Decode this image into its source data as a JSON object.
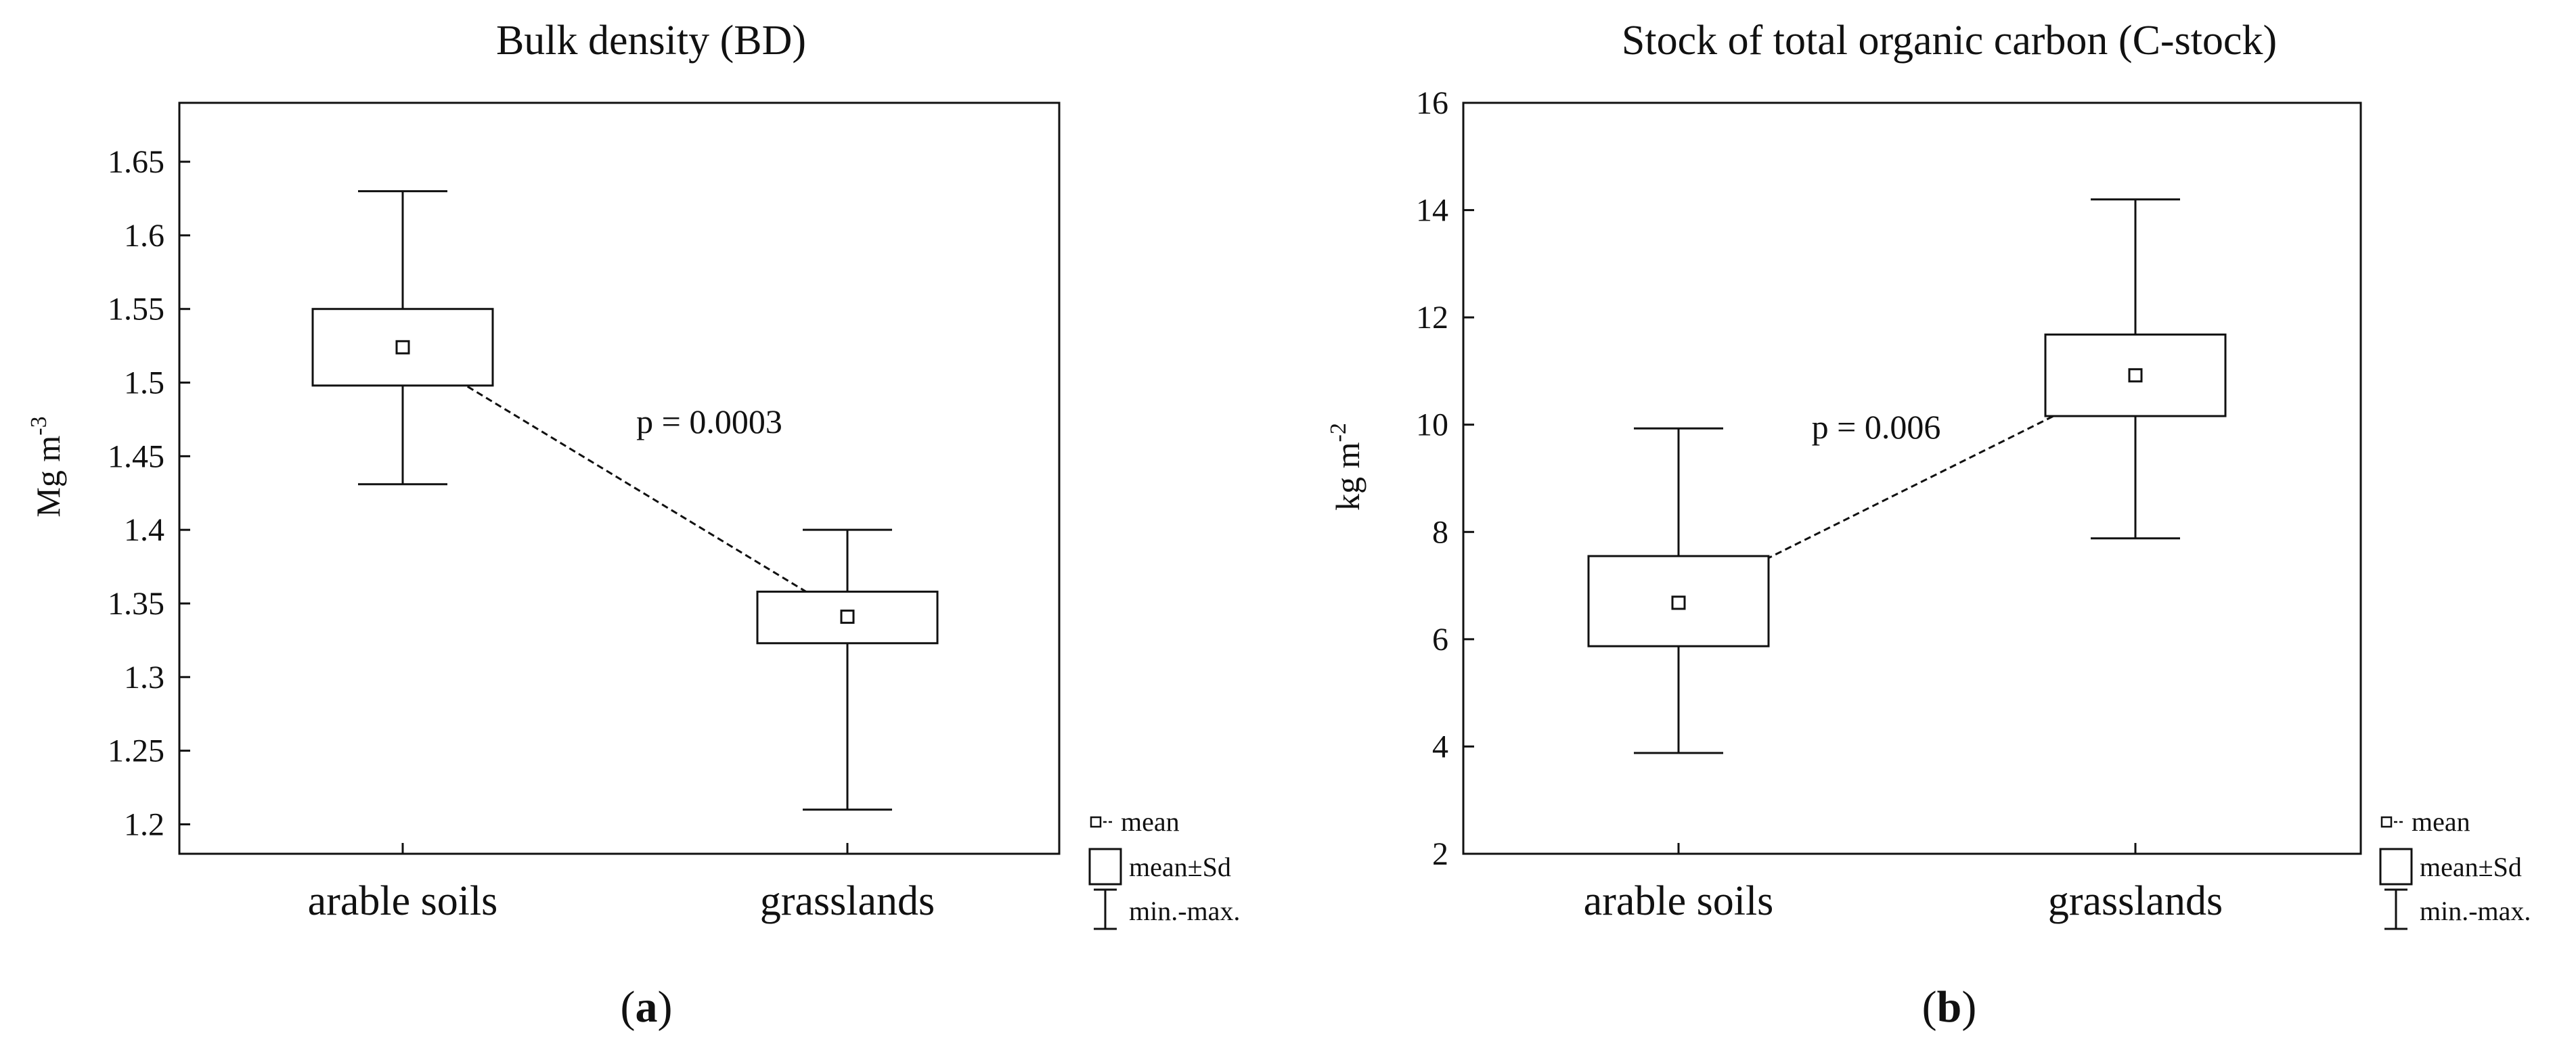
{
  "chart_data": [
    {
      "type": "boxplot",
      "panel_label": "a",
      "title": "Bulk density (BD)",
      "ylabel": "Mg m",
      "ylabel_exponent": "-3",
      "categories": [
        "arable soils",
        "grasslands"
      ],
      "ylim": [
        1.18,
        1.69
      ],
      "yticks": [
        1.2,
        1.25,
        1.3,
        1.35,
        1.4,
        1.45,
        1.5,
        1.55,
        1.6,
        1.65
      ],
      "ytick_labels": [
        "1.2",
        "1.25",
        "1.3",
        "1.35",
        "1.4",
        "1.45",
        "1.5",
        "1.55",
        "1.6",
        "1.65"
      ],
      "boxes": [
        {
          "category": "arable soils",
          "mean": 1.524,
          "sd_low": 1.498,
          "sd_high": 1.55,
          "min": 1.431,
          "max": 1.63
        },
        {
          "category": "grasslands",
          "mean": 1.341,
          "sd_low": 1.323,
          "sd_high": 1.358,
          "min": 1.21,
          "max": 1.4
        }
      ],
      "annotation": "p = 0.0003",
      "grid": false,
      "legend": {
        "position": "bottom-right",
        "entries": [
          "mean",
          "mean±Sd",
          "min.-max."
        ]
      }
    },
    {
      "type": "boxplot",
      "panel_label": "b",
      "title": "Stock of total organic carbon (C-stock)",
      "ylabel": "kg m",
      "ylabel_exponent": "-2",
      "categories": [
        "arable soils",
        "grasslands"
      ],
      "ylim": [
        2,
        16
      ],
      "yticks": [
        2,
        4,
        6,
        8,
        10,
        12,
        14,
        16
      ],
      "ytick_labels": [
        "2",
        "4",
        "6",
        "8",
        "10",
        "12",
        "14",
        "16"
      ],
      "boxes": [
        {
          "category": "arable soils",
          "mean": 6.68,
          "sd_low": 5.87,
          "sd_high": 7.55,
          "min": 3.88,
          "max": 9.93
        },
        {
          "category": "grasslands",
          "mean": 10.92,
          "sd_low": 10.16,
          "sd_high": 11.68,
          "min": 7.88,
          "max": 14.2
        }
      ],
      "annotation": "p = 0.006",
      "grid": false,
      "legend": {
        "position": "bottom-right",
        "entries": [
          "mean",
          "mean±Sd",
          "min.-max."
        ]
      }
    }
  ]
}
